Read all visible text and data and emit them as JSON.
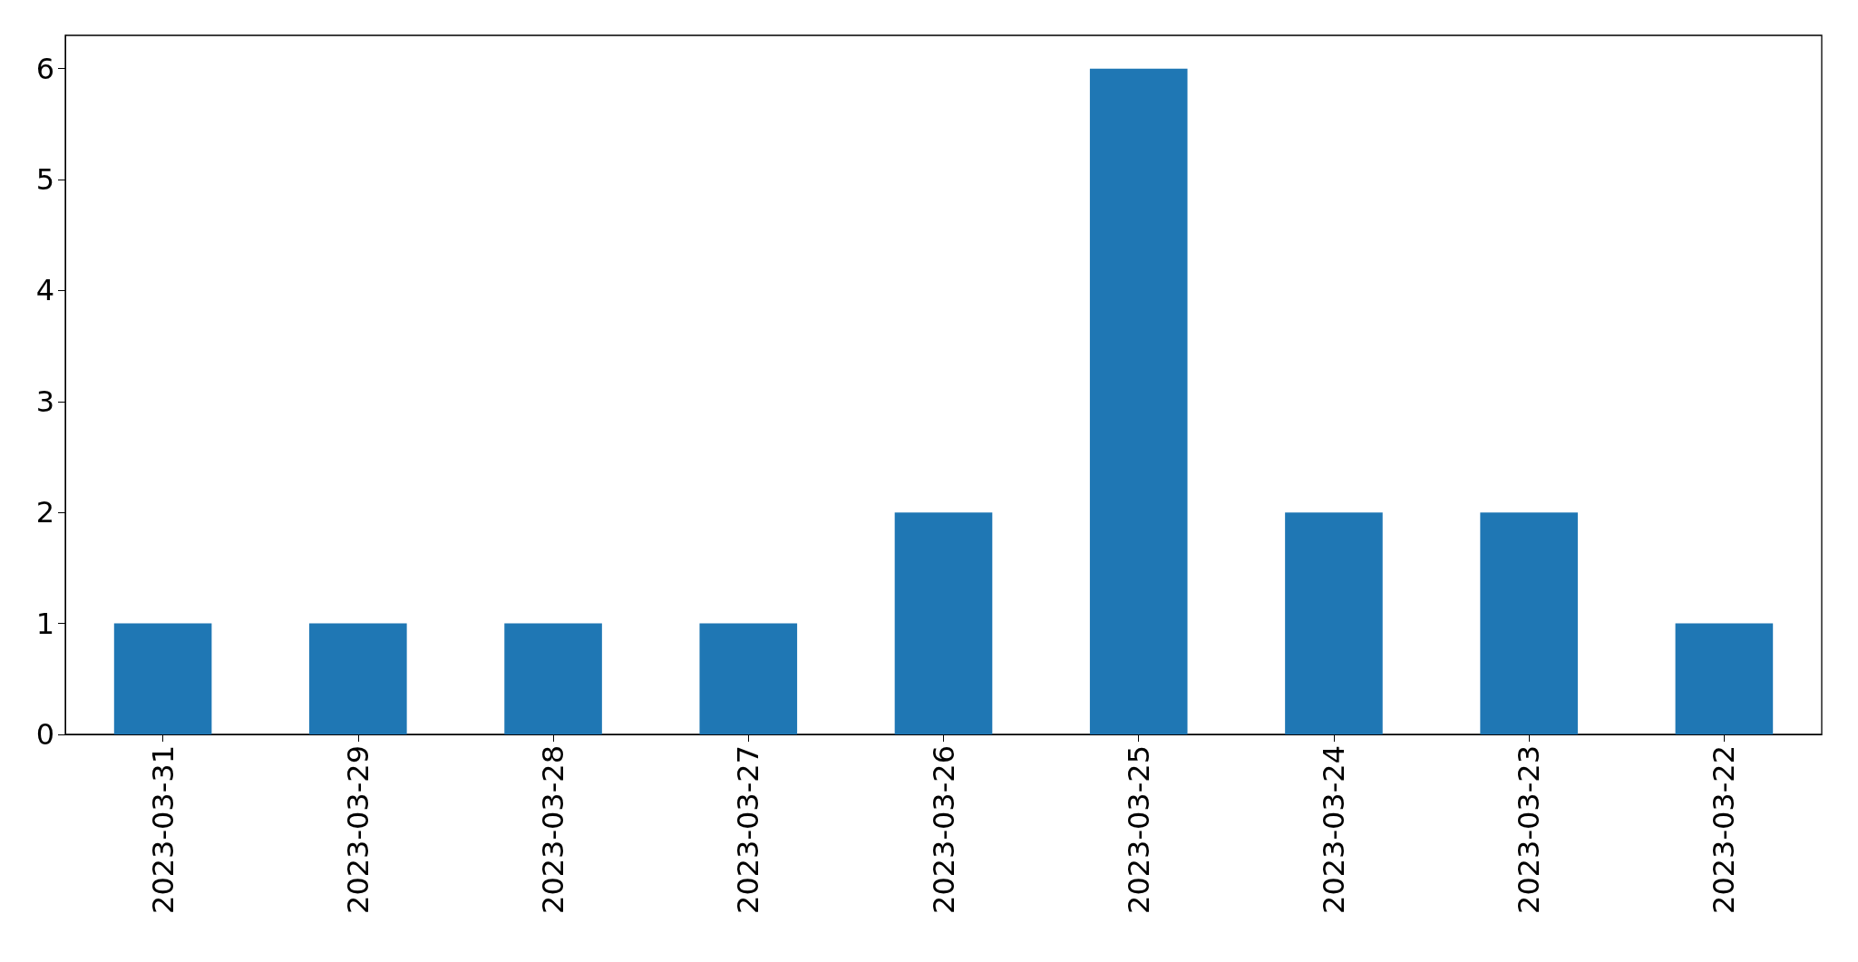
{
  "chart_data": {
    "type": "bar",
    "categories": [
      "2023-03-31",
      "2023-03-29",
      "2023-03-28",
      "2023-03-27",
      "2023-03-26",
      "2023-03-25",
      "2023-03-24",
      "2023-03-23",
      "2023-03-22"
    ],
    "values": [
      1,
      1,
      1,
      1,
      2,
      6,
      2,
      2,
      1
    ],
    "color": "#1f77b4",
    "ylim": [
      0,
      6.3
    ],
    "yticks": [
      0,
      1,
      2,
      3,
      4,
      5,
      6
    ],
    "grid": false
  }
}
